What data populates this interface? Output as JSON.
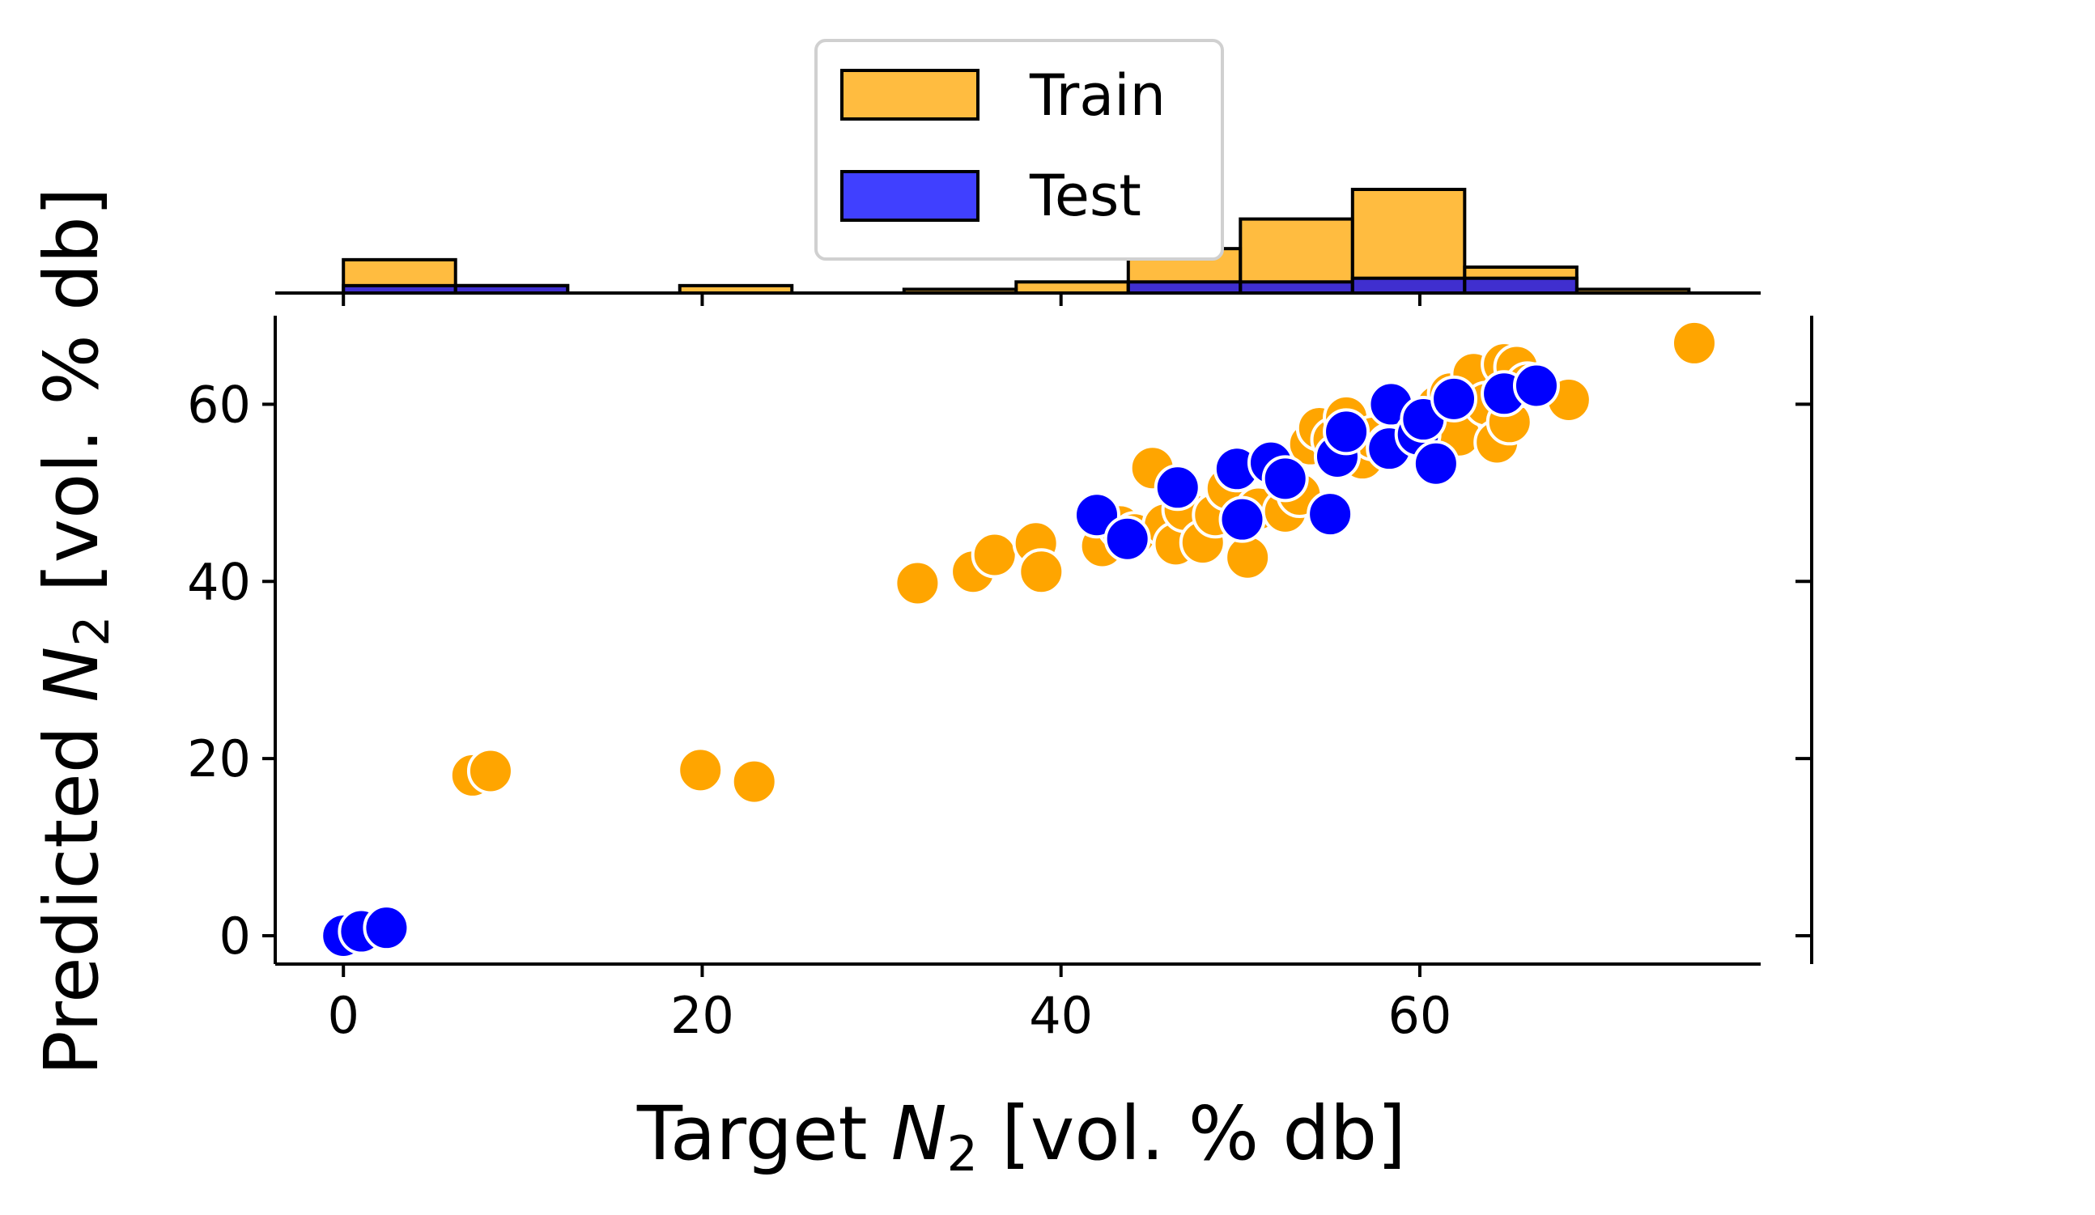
{
  "chart_data": {
    "type": "scatter",
    "xlabel": {
      "prefix": "Target ",
      "var": "N",
      "sub": "2",
      "suffix": " [vol. % db]"
    },
    "ylabel": {
      "prefix": "Predicted ",
      "var": "N",
      "sub": "2",
      "suffix": " [vol. % db]"
    },
    "xlim": [
      -3.8,
      79
    ],
    "ylim": [
      -3.2,
      70
    ],
    "xticks": [
      0,
      20,
      40,
      60
    ],
    "yticks": [
      0,
      20,
      40,
      60
    ],
    "colors": {
      "train": "#FFA500",
      "test": "#0000FF"
    },
    "legend": {
      "placement": "top-center",
      "entries": [
        "Train",
        "Test"
      ]
    },
    "series": [
      {
        "name": "Train",
        "color": "#FFA500",
        "points": [
          [
            0,
            0
          ],
          [
            0.5,
            0.3
          ],
          [
            1.2,
            0.6
          ],
          [
            7.2,
            18.1
          ],
          [
            8.2,
            18.6
          ],
          [
            19.9,
            18.7
          ],
          [
            22.9,
            17.4
          ],
          [
            32.0,
            39.8
          ],
          [
            35.1,
            41.1
          ],
          [
            36.3,
            43.0
          ],
          [
            38.6,
            44.3
          ],
          [
            38.9,
            41.1
          ],
          [
            42.3,
            44.0
          ],
          [
            43.3,
            46.2
          ],
          [
            44.1,
            45.3
          ],
          [
            45.1,
            52.8
          ],
          [
            45.8,
            46.4
          ],
          [
            46.4,
            44.2
          ],
          [
            46.9,
            48.1
          ],
          [
            47.9,
            44.4
          ],
          [
            48.6,
            47.5
          ],
          [
            49.3,
            50.5
          ],
          [
            50.4,
            42.7
          ],
          [
            51.0,
            48.2
          ],
          [
            52.5,
            47.9
          ],
          [
            53.3,
            49.8
          ],
          [
            53.9,
            55.5
          ],
          [
            54.4,
            57.3
          ],
          [
            55.2,
            56.0
          ],
          [
            55.9,
            58.5
          ],
          [
            56.8,
            53.9
          ],
          [
            57.4,
            56.2
          ],
          [
            58.3,
            55.3
          ],
          [
            59.1,
            58.3
          ],
          [
            59.8,
            57.7
          ],
          [
            60.6,
            58.0
          ],
          [
            61.0,
            59.8
          ],
          [
            61.7,
            61.2
          ],
          [
            62.2,
            56.5
          ],
          [
            63.0,
            63.4
          ],
          [
            63.7,
            60.0
          ],
          [
            64.3,
            55.7
          ],
          [
            64.7,
            64.5
          ],
          [
            65.0,
            58.0
          ],
          [
            65.4,
            64.2
          ],
          [
            66.0,
            62.2
          ],
          [
            68.3,
            60.5
          ],
          [
            75.3,
            66.9
          ]
        ]
      },
      {
        "name": "Test",
        "color": "#0000FF",
        "points": [
          [
            0,
            0
          ],
          [
            1.0,
            0.5
          ],
          [
            2.4,
            0.9
          ],
          [
            42.0,
            47.5
          ],
          [
            43.7,
            44.8
          ],
          [
            46.5,
            50.6
          ],
          [
            49.8,
            52.7
          ],
          [
            50.1,
            47.0
          ],
          [
            51.7,
            53.4
          ],
          [
            52.5,
            51.6
          ],
          [
            55.0,
            47.6
          ],
          [
            55.4,
            54.1
          ],
          [
            55.9,
            56.9
          ],
          [
            58.3,
            55.0
          ],
          [
            58.4,
            60.0
          ],
          [
            59.9,
            56.6
          ],
          [
            60.2,
            58.3
          ],
          [
            60.9,
            53.3
          ],
          [
            61.9,
            60.6
          ],
          [
            64.7,
            61.2
          ],
          [
            66.5,
            62.1
          ]
        ]
      }
    ],
    "histogram": {
      "bins": [
        {
          "range": [
            0,
            6.25
          ],
          "train": 9,
          "test": 2
        },
        {
          "range": [
            6.25,
            12.5
          ],
          "train": 2,
          "test": 2
        },
        {
          "range": [
            12.5,
            18.75
          ],
          "train": 0,
          "test": 0
        },
        {
          "range": [
            18.75,
            25
          ],
          "train": 2,
          "test": 0
        },
        {
          "range": [
            25,
            31.25
          ],
          "train": 0,
          "test": 0
        },
        {
          "range": [
            31.25,
            37.5
          ],
          "train": 1,
          "test": 0
        },
        {
          "range": [
            37.5,
            43.75
          ],
          "train": 3,
          "test": 0
        },
        {
          "range": [
            43.75,
            50
          ],
          "train": 12,
          "test": 3
        },
        {
          "range": [
            50,
            56.25
          ],
          "train": 20,
          "test": 3
        },
        {
          "range": [
            56.25,
            62.5
          ],
          "train": 28,
          "test": 4
        },
        {
          "range": [
            62.5,
            68.75
          ],
          "train": 7,
          "test": 4
        },
        {
          "range": [
            68.75,
            75
          ],
          "train": 1,
          "test": 0
        }
      ]
    }
  }
}
